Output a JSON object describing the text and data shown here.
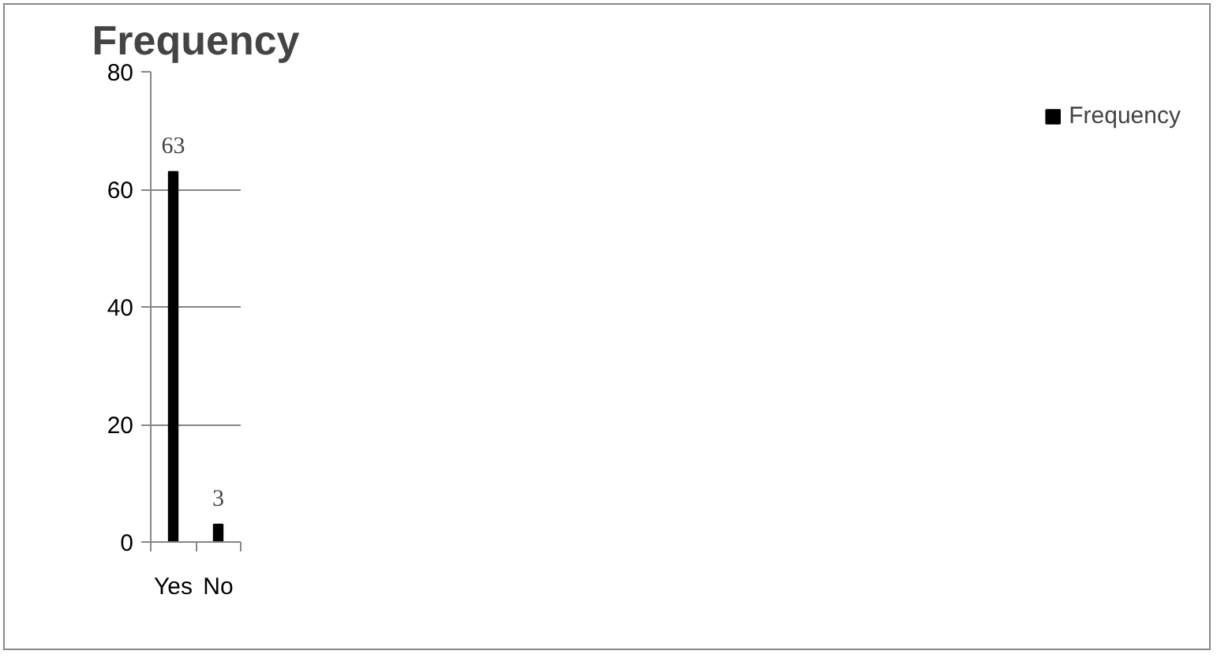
{
  "chart_data": {
    "type": "bar",
    "title": "Frequency",
    "categories": [
      "Yes",
      "No"
    ],
    "series": [
      {
        "name": "Frequency",
        "color": "#000000",
        "values": [
          63,
          3
        ]
      }
    ],
    "ylim": [
      0,
      80
    ],
    "yticks": [
      0,
      20,
      40,
      60,
      80
    ],
    "grid": "y",
    "legend": "right",
    "data_labels": true
  }
}
